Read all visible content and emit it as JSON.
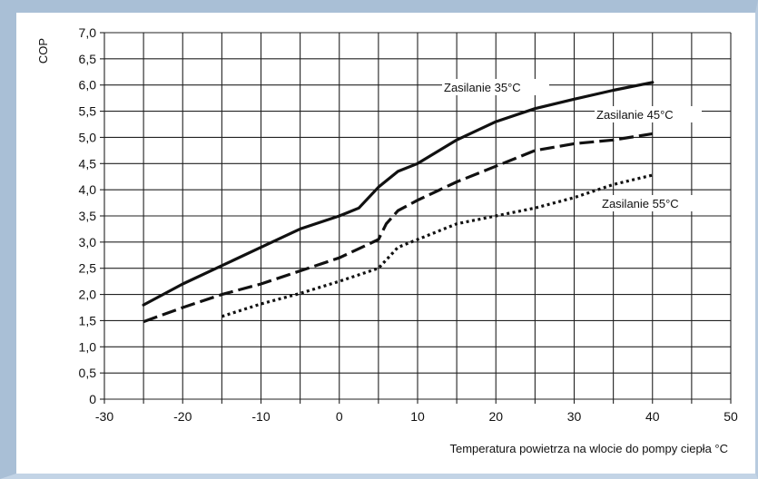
{
  "chart_data": {
    "type": "line",
    "ylabel": "COP",
    "xlabel": "Temperatura powietrza na wlocie do pompy ciepła °C",
    "xlim": [
      -30,
      50
    ],
    "ylim": [
      0,
      7.0
    ],
    "x_ticks": [
      "-30",
      "-20",
      "-10",
      "0",
      "10",
      "20",
      "30",
      "40",
      "50"
    ],
    "y_ticks": [
      "0",
      "0,5",
      "1,0",
      "1,5",
      "2,0",
      "2,5",
      "3,0",
      "3,5",
      "4,0",
      "4,5",
      "5,0",
      "5,5",
      "6,0",
      "6,5",
      "7,0"
    ],
    "grid": true,
    "series": [
      {
        "name": "Zasilanie 35°C",
        "style": "solid",
        "color": "#111111",
        "x": [
          -25,
          -20,
          -15,
          -10,
          -5,
          0,
          2.5,
          5,
          7.5,
          10,
          15,
          20,
          25,
          30,
          35,
          40
        ],
        "y": [
          1.8,
          2.2,
          2.55,
          2.9,
          3.25,
          3.5,
          3.65,
          4.05,
          4.35,
          4.5,
          4.95,
          5.3,
          5.55,
          5.73,
          5.9,
          6.05
        ]
      },
      {
        "name": "Zasilanie 45°C",
        "style": "dashed",
        "color": "#111111",
        "x": [
          -25,
          -20,
          -15,
          -10,
          -5,
          0,
          5,
          6,
          7.5,
          10,
          15,
          20,
          25,
          30,
          35,
          40
        ],
        "y": [
          1.48,
          1.75,
          2.0,
          2.2,
          2.45,
          2.7,
          3.05,
          3.35,
          3.6,
          3.8,
          4.15,
          4.45,
          4.75,
          4.88,
          4.95,
          5.07
        ]
      },
      {
        "name": "Zasilanie 55°C",
        "style": "dotted",
        "color": "#111111",
        "x": [
          -15,
          -10,
          -5,
          0,
          5,
          7.5,
          10,
          15,
          20,
          25,
          30,
          35,
          40
        ],
        "y": [
          1.58,
          1.82,
          2.02,
          2.25,
          2.5,
          2.9,
          3.05,
          3.35,
          3.5,
          3.65,
          3.85,
          4.1,
          4.28
        ]
      }
    ]
  }
}
